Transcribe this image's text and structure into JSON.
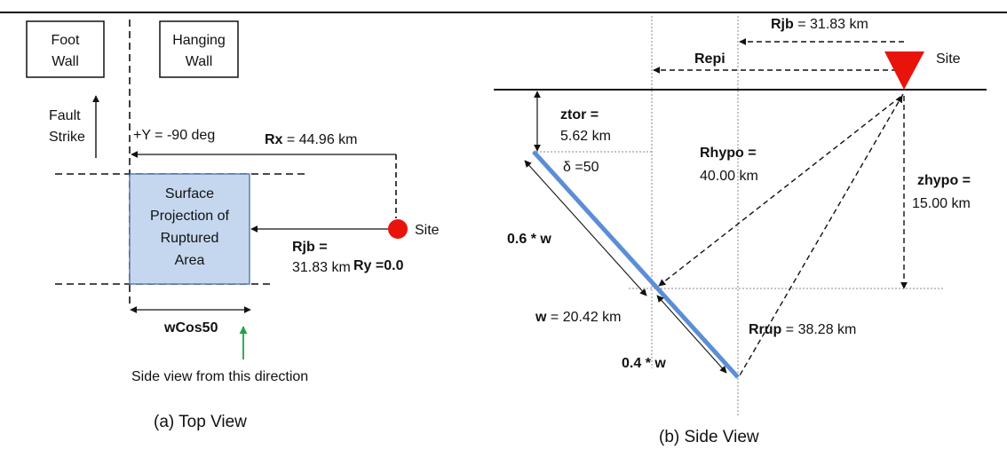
{
  "colors": {
    "rupture_fill": "#c5d7ee",
    "rupture_stroke": "#4a6fa5",
    "site_marker": "#e8140c",
    "fault_plane": "#5b8ed6",
    "arrow_green": "#1fa346",
    "line": "#111111",
    "guide": "#8a8a8a"
  },
  "icons": {
    "site_top": "red-circle",
    "site_side": "red-inverted-triangle"
  },
  "top_view": {
    "foot_wall": [
      "Foot",
      "Wall"
    ],
    "hanging_wall": [
      "Hanging",
      "Wall"
    ],
    "fault_strike": [
      "Fault",
      "Strike"
    ],
    "y_angle": "+Υ = -90 deg",
    "rx": {
      "name": "Rx",
      "value": " = 44.96 km"
    },
    "rupture_area": [
      "Surface",
      "Projection of",
      "Ruptured",
      "Area"
    ],
    "rjb": [
      "Rjb =",
      "31.83 km"
    ],
    "site": "Site",
    "ry": "Ry =0.0",
    "wcos": "wCos50",
    "side_view_note": "Side view from this direction",
    "caption": "(a) Top View"
  },
  "side_view": {
    "rjb": {
      "name": "Rjb",
      "value": " = 31.83 km"
    },
    "repi": "Repi",
    "site": "Site",
    "ztor": [
      "ztor  =",
      "5.62 km"
    ],
    "dip": "δ =50",
    "rhypo": [
      "Rhypo =",
      "40.00 km"
    ],
    "zhypo": [
      "zhypo =",
      "15.00 km"
    ],
    "w_top": "0.6 * w",
    "w": {
      "name": "w",
      "value": " = 20.42 km"
    },
    "w_bottom": "0.4 * w",
    "rrup": {
      "name": "Rrup",
      "value": " = 38.28 km"
    },
    "caption": "(b) Side View"
  }
}
